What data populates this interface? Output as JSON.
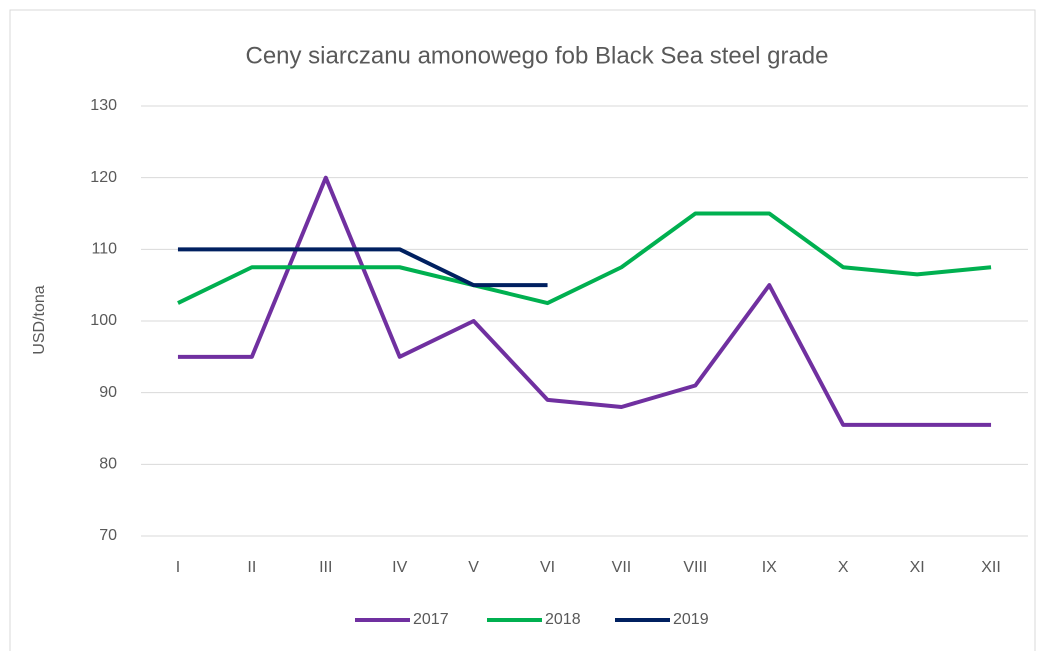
{
  "chart_data": {
    "type": "line",
    "title": "Ceny siarczanu amonowego fob Black Sea steel grade",
    "y_label": "USD/tona",
    "categories": [
      "I",
      "II",
      "III",
      "IV",
      "V",
      "VI",
      "VII",
      "VIII",
      "IX",
      "X",
      "XI",
      "XII"
    ],
    "series": [
      {
        "name": "2017",
        "color": "#7030a0",
        "values": [
          95,
          95,
          120,
          95,
          100,
          89,
          88,
          91,
          105,
          85.5,
          85.5,
          85.5
        ]
      },
      {
        "name": "2018",
        "color": "#00b050",
        "values": [
          102.5,
          107.5,
          107.5,
          107.5,
          105,
          102.5,
          107.5,
          115,
          115,
          107.5,
          106.5,
          107.5
        ]
      },
      {
        "name": "2019",
        "color": "#002060",
        "values": [
          110,
          110,
          110,
          110,
          105,
          105,
          null,
          null,
          null,
          null,
          null,
          null
        ]
      }
    ],
    "ylim": [
      70,
      130
    ],
    "yticks": [
      70,
      80,
      90,
      100,
      110,
      120,
      130
    ],
    "grid": true,
    "legend": "bottom"
  }
}
